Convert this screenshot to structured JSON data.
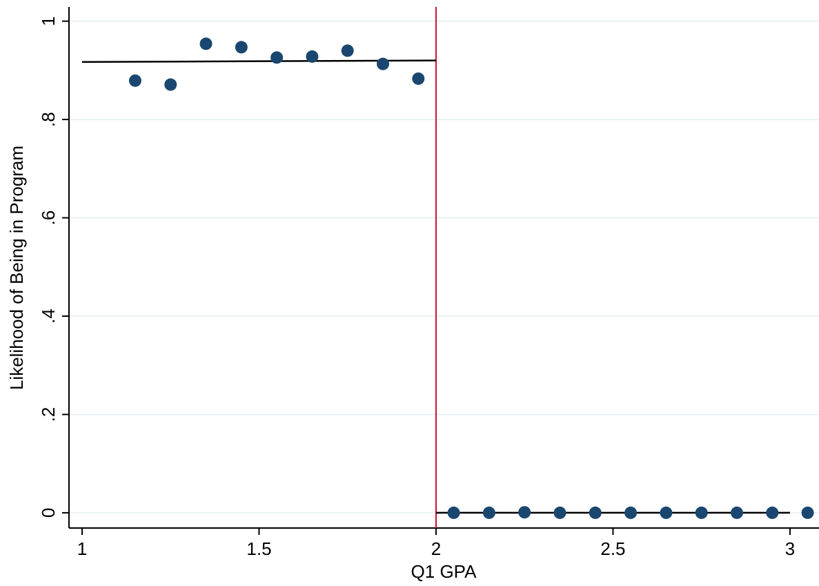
{
  "chart_data": {
    "type": "scatter",
    "x_label": "Q1 GPA",
    "y_label": "Likelihood of Being in Program",
    "xlim": [
      0.963,
      3.082
    ],
    "ylim": [
      -0.031,
      1.029
    ],
    "xticks": [
      1,
      1.5,
      2,
      2.5,
      3
    ],
    "yticks": [
      0,
      {
        "value": 0.2,
        "label": ".2"
      },
      {
        "value": 0.4,
        "label": ".4"
      },
      {
        "value": 0.6,
        "label": ".6"
      },
      {
        "value": 0.8,
        "label": ".8"
      },
      1
    ],
    "grid": true,
    "grid_color": "#eaf2f3",
    "points": {
      "color": "#1a476f",
      "x": [
        1.15,
        1.25,
        1.35,
        1.45,
        1.55,
        1.65,
        1.75,
        1.85,
        1.95,
        2.05,
        2.15,
        2.25,
        2.35,
        2.45,
        2.55,
        2.65,
        2.75,
        2.85,
        2.95,
        3.05
      ],
      "y": [
        0.879,
        0.871,
        0.954,
        0.947,
        0.926,
        0.928,
        0.94,
        0.913,
        0.883,
        0,
        0,
        0.001,
        0,
        0,
        0,
        0,
        0,
        0,
        0,
        0
      ]
    },
    "fits": [
      {
        "color": "#000000",
        "x": [
          1,
          2
        ],
        "y": [
          0.917,
          0.92
        ]
      },
      {
        "color": "#000000",
        "x": [
          2,
          3
        ],
        "y": [
          0,
          0
        ]
      }
    ],
    "cutoff": {
      "x": 2,
      "color": "#c8102e"
    }
  }
}
